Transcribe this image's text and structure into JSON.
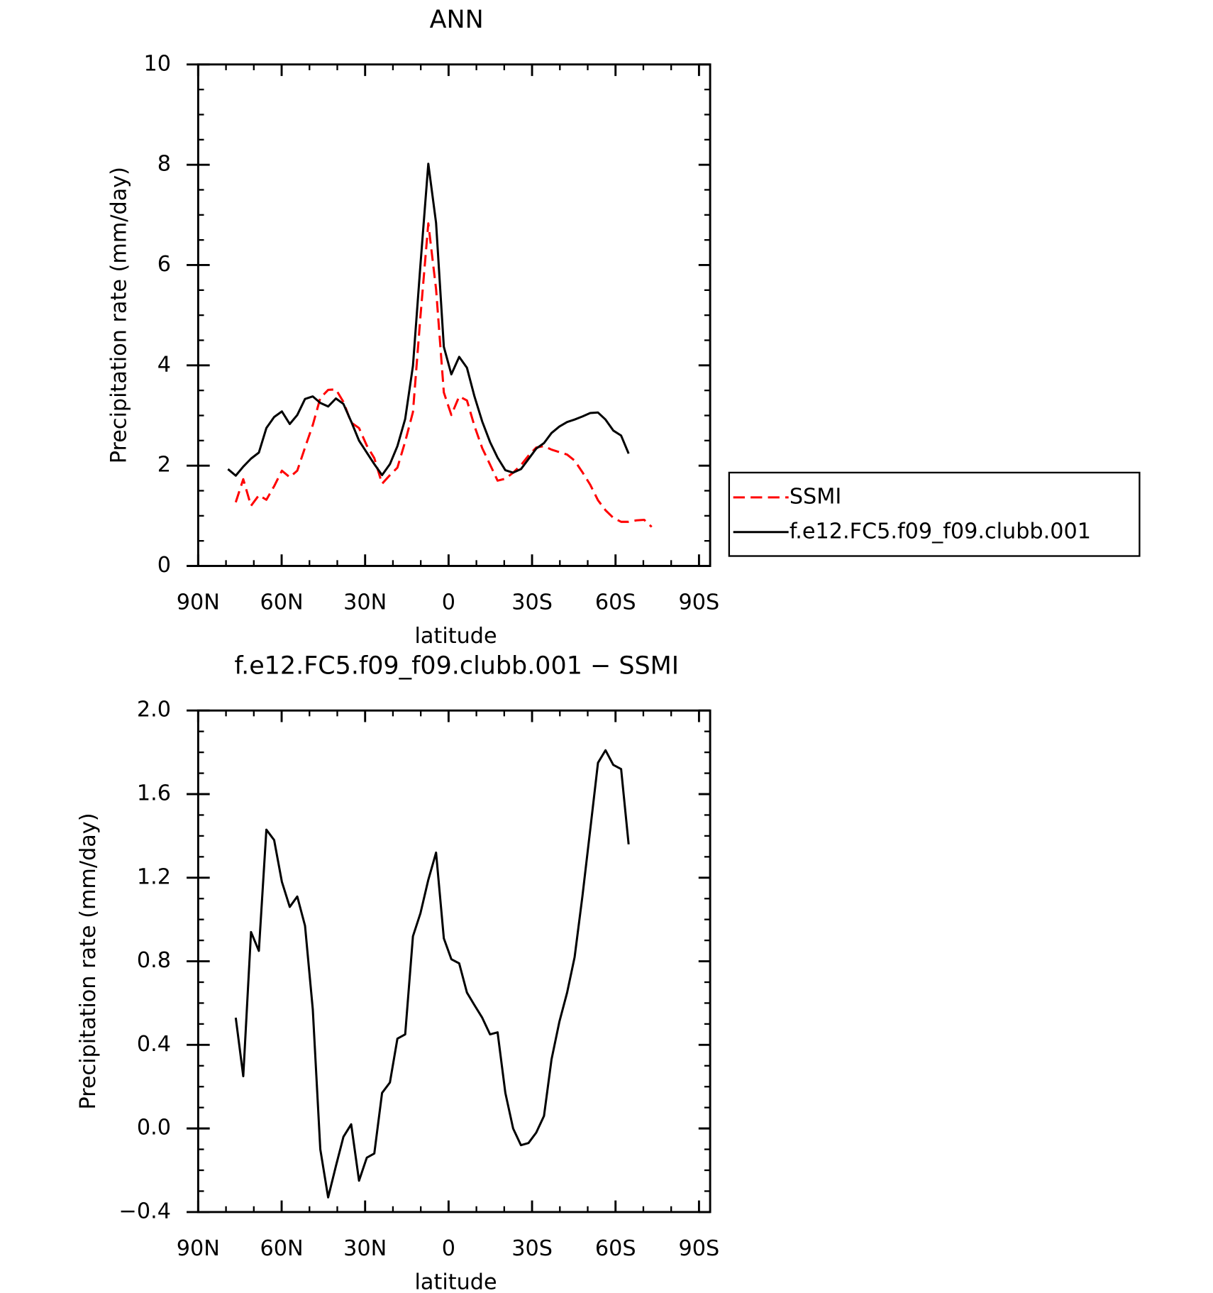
{
  "chart_data": [
    {
      "type": "line",
      "title": "ANN",
      "xlabel": "latitude",
      "ylabel": "Precipitation rate (mm/day)",
      "x": [
        79.3,
        76.5,
        73.8,
        71.0,
        68.2,
        65.5,
        62.7,
        59.9,
        57.1,
        54.4,
        51.6,
        48.8,
        46.1,
        43.3,
        40.5,
        37.8,
        35.0,
        32.2,
        29.4,
        26.7,
        23.9,
        21.1,
        18.4,
        15.6,
        12.8,
        10.1,
        7.3,
        4.5,
        1.7,
        -1.0,
        -3.8,
        -6.6,
        -9.3,
        -12.1,
        -14.9,
        -17.6,
        -20.4,
        -23.2,
        -26.0,
        -28.7,
        -31.5,
        -34.3,
        -37.0,
        -39.8,
        -42.6,
        -45.3,
        -48.1,
        -50.9,
        -53.7,
        -56.4,
        -59.2,
        -62.0,
        -64.7,
        -67.5,
        -70.3,
        -73.0,
        -75.8
      ],
      "series": [
        {
          "name": "SSMI",
          "color": "#ff0000",
          "style": "dashed",
          "values": [
            null,
            1.27,
            1.73,
            1.2,
            1.41,
            1.32,
            1.59,
            1.9,
            1.77,
            1.9,
            2.36,
            2.81,
            3.35,
            3.51,
            3.52,
            3.27,
            2.86,
            2.75,
            2.4,
            2.15,
            1.64,
            1.81,
            1.96,
            2.48,
            3.07,
            4.98,
            6.83,
            5.52,
            3.46,
            3.01,
            3.38,
            3.3,
            2.79,
            2.35,
            2.02,
            1.7,
            1.74,
            1.86,
            2.01,
            2.2,
            2.36,
            2.39,
            2.32,
            2.27,
            2.22,
            2.1,
            1.87,
            1.62,
            1.31,
            1.11,
            0.96,
            0.88,
            0.88,
            0.91,
            0.92,
            0.78,
            null
          ]
        },
        {
          "name": "f.e12.FC5.f09_f09.clubb.001",
          "color": "#000000",
          "style": "solid",
          "values": [
            1.93,
            1.8,
            1.98,
            2.14,
            2.26,
            2.75,
            2.97,
            3.08,
            2.83,
            3.01,
            3.33,
            3.38,
            3.25,
            3.18,
            3.34,
            3.23,
            2.88,
            2.5,
            2.26,
            2.03,
            1.81,
            2.03,
            2.39,
            2.93,
            3.99,
            6.01,
            8.02,
            6.84,
            4.37,
            3.82,
            4.17,
            3.95,
            3.38,
            2.88,
            2.47,
            2.16,
            1.91,
            1.86,
            1.93,
            2.13,
            2.34,
            2.45,
            2.65,
            2.78,
            2.87,
            2.92,
            2.98,
            3.05,
            3.06,
            2.92,
            2.7,
            2.6,
            2.24,
            null,
            null,
            null,
            null
          ]
        }
      ],
      "xlim": [
        90,
        -94
      ],
      "xticks": [
        {
          "value": 90,
          "label": "90N"
        },
        {
          "value": 60,
          "label": "60N"
        },
        {
          "value": 30,
          "label": "30N"
        },
        0,
        {
          "value": -30,
          "label": "30S"
        },
        {
          "value": -60,
          "label": "60S"
        },
        {
          "value": -90,
          "label": "90S"
        }
      ],
      "ylim": [
        0,
        10
      ],
      "yticks": [
        0,
        2,
        4,
        6,
        8,
        10
      ],
      "legend": "right",
      "grid": false
    },
    {
      "type": "line",
      "title": "f.e12.FC5.f09_f09.clubb.001 − SSMI",
      "xlabel": "latitude",
      "ylabel": "Precipitation rate (mm/day)",
      "x": [
        79.3,
        76.5,
        73.8,
        71.0,
        68.2,
        65.5,
        62.7,
        59.9,
        57.1,
        54.4,
        51.6,
        48.8,
        46.1,
        43.3,
        40.5,
        37.8,
        35.0,
        32.2,
        29.4,
        26.7,
        23.9,
        21.1,
        18.4,
        15.6,
        12.8,
        10.1,
        7.3,
        4.5,
        1.7,
        -1.0,
        -3.8,
        -6.6,
        -9.3,
        -12.1,
        -14.9,
        -17.6,
        -20.4,
        -23.2,
        -26.0,
        -28.7,
        -31.5,
        -34.3,
        -37.0,
        -39.8,
        -42.6,
        -45.3,
        -48.1,
        -50.9,
        -53.7,
        -56.4,
        -59.2,
        -62.0,
        -64.7,
        -67.5,
        -70.3,
        -73.0,
        -75.8
      ],
      "series": [
        {
          "color": "#000000",
          "style": "solid",
          "values": [
            null,
            0.53,
            0.25,
            0.94,
            0.85,
            1.43,
            1.38,
            1.18,
            1.06,
            1.11,
            0.97,
            0.57,
            -0.1,
            -0.33,
            -0.18,
            -0.04,
            0.02,
            -0.25,
            -0.14,
            -0.12,
            0.17,
            0.22,
            0.43,
            0.45,
            0.92,
            1.03,
            1.19,
            1.32,
            0.91,
            0.81,
            0.79,
            0.65,
            0.59,
            0.53,
            0.45,
            0.46,
            0.17,
            0.0,
            -0.08,
            -0.07,
            -0.02,
            0.06,
            0.33,
            0.51,
            0.65,
            0.82,
            1.11,
            1.43,
            1.75,
            1.81,
            1.74,
            1.72,
            1.36,
            null,
            null,
            null,
            null
          ]
        }
      ],
      "xlim": [
        90,
        -94
      ],
      "xticks": [
        {
          "value": 90,
          "label": "90N"
        },
        {
          "value": 60,
          "label": "60N"
        },
        {
          "value": 30,
          "label": "30N"
        },
        0,
        {
          "value": -30,
          "label": "30S"
        },
        {
          "value": -60,
          "label": "60S"
        },
        {
          "value": -90,
          "label": "90S"
        }
      ],
      "ylim": [
        -0.4,
        2.0
      ],
      "yticks": [
        {
          "value": -0.4,
          "label": "−0.4"
        },
        {
          "value": 0.0,
          "label": "0.0"
        },
        {
          "value": 0.4,
          "label": "0.4"
        },
        {
          "value": 0.8,
          "label": "0.8"
        },
        {
          "value": 1.2,
          "label": "1.2"
        },
        {
          "value": 1.6,
          "label": "1.6"
        },
        {
          "value": 2.0,
          "label": "2.0"
        }
      ],
      "grid": false
    }
  ]
}
